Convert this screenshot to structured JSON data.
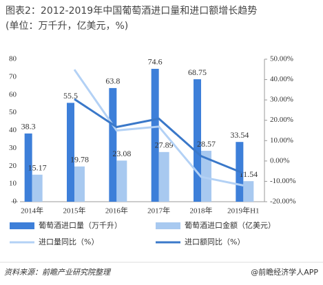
{
  "chart_data": {
    "type": "bar",
    "title": "图表2：2012-2019年中国葡萄酒进口量和进口额增长趋势",
    "subtitle": "(单位：万千升，亿美元，%)",
    "categories": [
      "2014年",
      "2015年",
      "2016年",
      "2017年",
      "2018年",
      "2019年H1"
    ],
    "series": [
      {
        "name": "葡萄酒进口量（万千升）",
        "type": "bar",
        "color": "#3d7fd9",
        "values": [
          38.3,
          55.5,
          63.8,
          74.6,
          68.75,
          33.54
        ]
      },
      {
        "name": "葡萄酒进口金额（亿美元）",
        "type": "bar",
        "color": "#a8c9f0",
        "values": [
          15.17,
          19.78,
          23.08,
          27.89,
          28.57,
          11.54
        ]
      },
      {
        "name": "进口量同比（%）",
        "type": "line",
        "axis": "y2",
        "color": "#b3d1f5",
        "values": [
          null,
          44.9,
          15,
          16.9,
          -7.8,
          -12
        ]
      },
      {
        "name": "进口额同比（%）",
        "type": "line",
        "axis": "y2",
        "color": "#3a78c9",
        "values": [
          null,
          30.4,
          16.7,
          20.8,
          2.4,
          -6
        ]
      }
    ],
    "ylim": [
      0,
      80
    ],
    "yticks": [
      0,
      10,
      20,
      30,
      40,
      50,
      60,
      70,
      80
    ],
    "y2lim": [
      -20,
      50
    ],
    "y2ticks": [
      {
        "value": -20,
        "label": "-20.00%"
      },
      {
        "value": -10,
        "label": "-10.00%"
      },
      {
        "value": 0,
        "label": "0.00%"
      },
      {
        "value": 10,
        "label": "10.00%"
      },
      {
        "value": 20,
        "label": "20.00%"
      },
      {
        "value": 30,
        "label": "30.00%"
      },
      {
        "value": 40,
        "label": "40.00%"
      },
      {
        "value": 50,
        "label": "50.00%"
      }
    ],
    "source": "资料来源：前瞻产业研究院整理",
    "credit": "@前瞻经济学人APP"
  }
}
